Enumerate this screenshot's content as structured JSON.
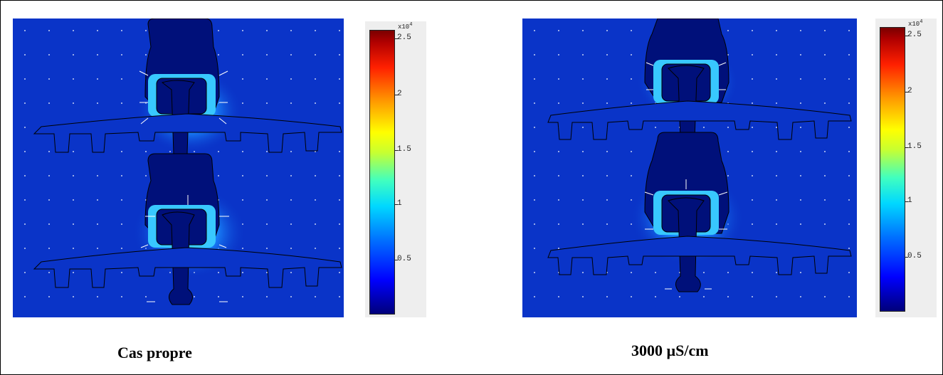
{
  "panels": [
    {
      "caption": "Cas propre",
      "colorbar": {
        "multiplier_base": "x10",
        "multiplier_exp": "4",
        "ticks": [
          "2.5",
          "2",
          "1.5",
          "1",
          "0.5"
        ]
      }
    },
    {
      "caption": "3000 µS/cm",
      "colorbar": {
        "multiplier_base": "x10",
        "multiplier_exp": "4",
        "ticks": [
          "2.5",
          "2",
          "1.5",
          "1",
          "0.5"
        ]
      }
    }
  ],
  "colors": {
    "background_field": "#0a34c8",
    "insulator_body": "#00107a",
    "hot_region": "#2aa8ff",
    "arrow": "#ffffff"
  }
}
